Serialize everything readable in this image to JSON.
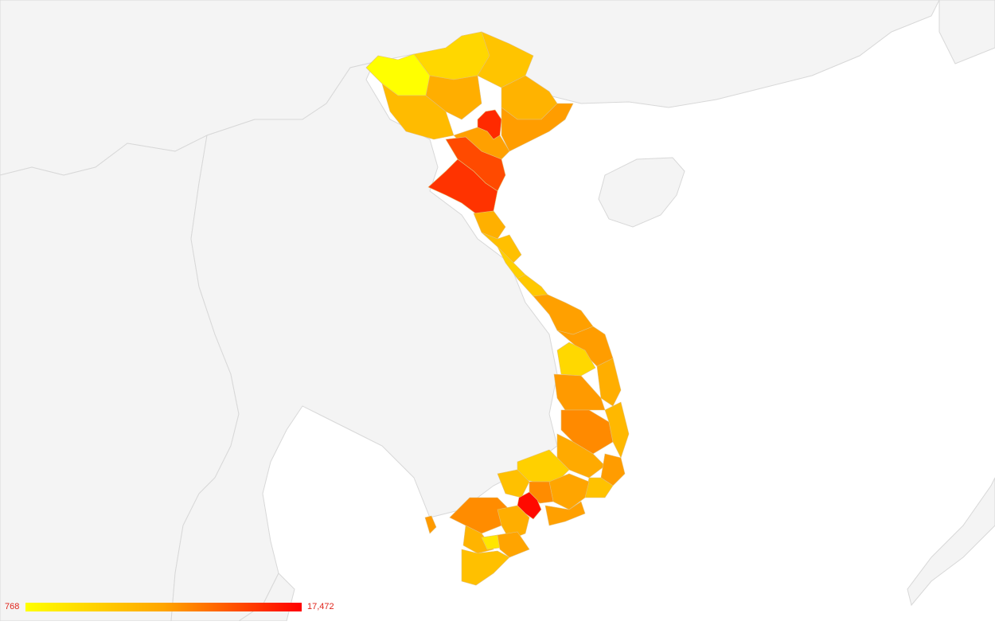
{
  "map": {
    "region": "Vietnam",
    "colors": {
      "background": "#ffffff",
      "land": "#f4f4f4",
      "border": "#d8d8d8",
      "low": "#ffff00",
      "mid": "#ffa500",
      "high": "#ff0000",
      "label_text": "#e0241b"
    }
  },
  "legend": {
    "min_label": "768",
    "max_label": "17,472",
    "min_value": 768,
    "max_value": 17472
  }
}
